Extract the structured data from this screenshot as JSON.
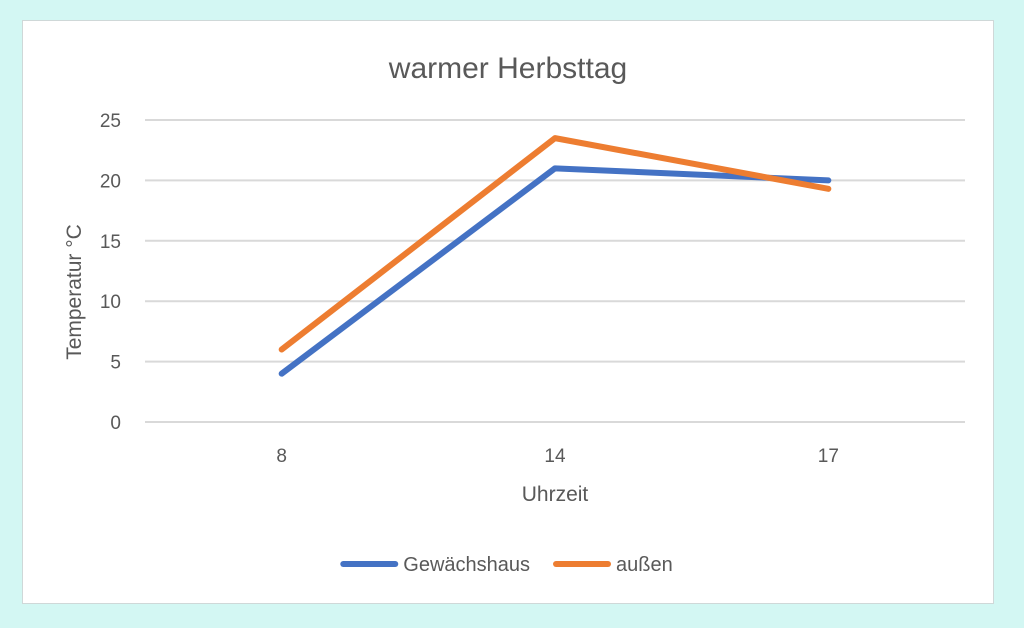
{
  "chart_data": {
    "type": "line",
    "title": "warmer Herbsttag",
    "xlabel": "Uhrzeit",
    "ylabel": "Temperatur °C",
    "categories": [
      "8",
      "14",
      "17"
    ],
    "ylim": [
      0,
      25
    ],
    "yticks": [
      0,
      5,
      10,
      15,
      20,
      25
    ],
    "grid": true,
    "legend": "bottom",
    "series": [
      {
        "name": "Gewächshaus",
        "values": [
          4,
          21,
          20
        ],
        "color": "#4472c4"
      },
      {
        "name": "außen",
        "values": [
          6,
          23.5,
          19.3
        ],
        "color": "#ed7d31"
      }
    ]
  }
}
